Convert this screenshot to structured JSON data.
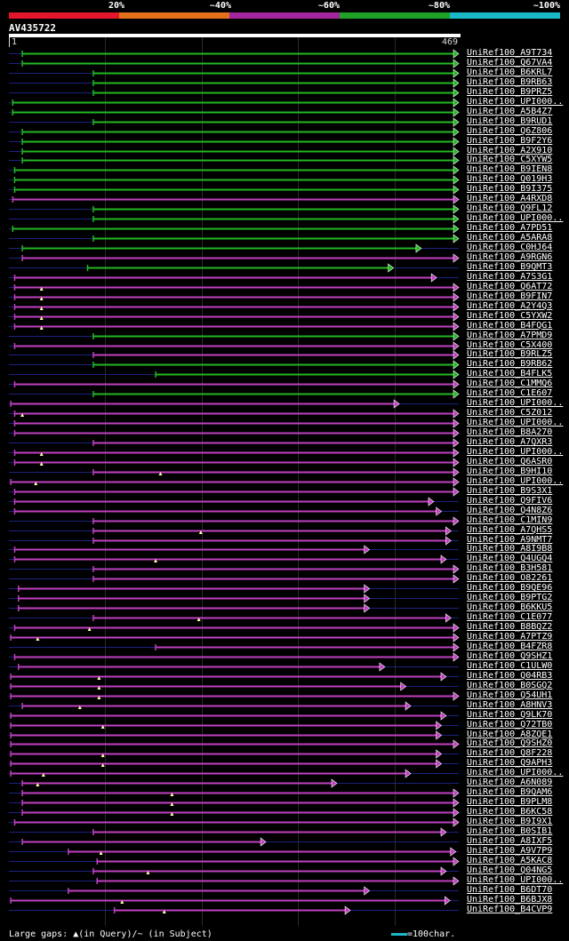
{
  "scale": {
    "labels": [
      "20%",
      "~40%",
      "~60%",
      "~80%",
      "~100%"
    ],
    "colors": [
      "#e4162b",
      "#e5701b",
      "#a3269e",
      "#1fa127",
      "#19b8c8"
    ]
  },
  "query": {
    "name": "AV435722",
    "start": "1",
    "end": "469",
    "length": 469
  },
  "legend": {
    "text": "Large gaps: ▲(in Query)/~ (in Subject)",
    "scale_key": "=100char."
  },
  "colors": {
    "green": "#22b822",
    "purple": "#c040c0",
    "thin": "#1a237e",
    "gap": "#ffffaa"
  },
  "hits": [
    {
      "name": "UniRef100_A9T734",
      "color": "green",
      "start": 14,
      "end": 469,
      "gap": null
    },
    {
      "name": "UniRef100_Q67VA4",
      "color": "green",
      "start": 14,
      "end": 469,
      "gap": null
    },
    {
      "name": "UniRef100_B6KRL7",
      "color": "green",
      "start": 88,
      "end": 469,
      "gap": null
    },
    {
      "name": "UniRef100_B9RB63",
      "color": "green",
      "start": 88,
      "end": 469,
      "gap": null
    },
    {
      "name": "UniRef100_B9PRZ5",
      "color": "green",
      "start": 88,
      "end": 469,
      "gap": null
    },
    {
      "name": "UniRef100_UPI000..",
      "color": "green",
      "start": 4,
      "end": 469,
      "gap": null
    },
    {
      "name": "UniRef100_A5B4Z7",
      "color": "green",
      "start": 4,
      "end": 469,
      "gap": null
    },
    {
      "name": "UniRef100_B9RUD1",
      "color": "green",
      "start": 88,
      "end": 469,
      "gap": null
    },
    {
      "name": "UniRef100_Q6Z806",
      "color": "green",
      "start": 14,
      "end": 469,
      "gap": null
    },
    {
      "name": "UniRef100_B9F2Y6",
      "color": "green",
      "start": 14,
      "end": 469,
      "gap": null
    },
    {
      "name": "UniRef100_A2X910",
      "color": "green",
      "start": 14,
      "end": 469,
      "gap": null
    },
    {
      "name": "UniRef100_C5XYW5",
      "color": "green",
      "start": 14,
      "end": 469,
      "gap": null
    },
    {
      "name": "UniRef100_B9IEN8",
      "color": "green",
      "start": 6,
      "end": 469,
      "gap": null
    },
    {
      "name": "UniRef100_Q019H3",
      "color": "green",
      "start": 6,
      "end": 469,
      "gap": null
    },
    {
      "name": "UniRef100_B9I375",
      "color": "green",
      "start": 6,
      "end": 469,
      "gap": null
    },
    {
      "name": "UniRef100_A4RXD8",
      "color": "purple",
      "start": 4,
      "end": 469,
      "gap": null
    },
    {
      "name": "UniRef100_Q9FL12",
      "color": "green",
      "start": 88,
      "end": 469,
      "gap": null
    },
    {
      "name": "UniRef100_UPI000..",
      "color": "green",
      "start": 88,
      "end": 469,
      "gap": null
    },
    {
      "name": "UniRef100_A7PD51",
      "color": "green",
      "start": 4,
      "end": 469,
      "gap": null
    },
    {
      "name": "UniRef100_A5ARA8",
      "color": "green",
      "start": 88,
      "end": 469,
      "gap": null
    },
    {
      "name": "UniRef100_C0HJ64",
      "color": "green",
      "start": 14,
      "end": 430,
      "gap": null
    },
    {
      "name": "UniRef100_A9RGN6",
      "color": "purple",
      "start": 14,
      "end": 469,
      "gap": null
    },
    {
      "name": "UniRef100_B9QMT3",
      "color": "green",
      "start": 82,
      "end": 401,
      "gap": null
    },
    {
      "name": "UniRef100_A7S3G1",
      "color": "purple",
      "start": 6,
      "end": 446,
      "gap": null
    },
    {
      "name": "UniRef100_Q6AT72",
      "color": "purple",
      "start": 6,
      "end": 469,
      "gap": 34
    },
    {
      "name": "UniRef100_B9FIN7",
      "color": "purple",
      "start": 6,
      "end": 469,
      "gap": 34
    },
    {
      "name": "UniRef100_A2Y4Q3",
      "color": "purple",
      "start": 6,
      "end": 469,
      "gap": 34
    },
    {
      "name": "UniRef100_C5YXW2",
      "color": "purple",
      "start": 6,
      "end": 469,
      "gap": 34
    },
    {
      "name": "UniRef100_B4FQG1",
      "color": "purple",
      "start": 6,
      "end": 469,
      "gap": 34
    },
    {
      "name": "UniRef100_A7PMD9",
      "color": "green",
      "start": 88,
      "end": 469,
      "gap": null
    },
    {
      "name": "UniRef100_C5X400",
      "color": "purple",
      "start": 6,
      "end": 469,
      "gap": null
    },
    {
      "name": "UniRef100_B9RLZ5",
      "color": "purple",
      "start": 88,
      "end": 469,
      "gap": null
    },
    {
      "name": "UniRef100_B9RB62",
      "color": "green",
      "start": 88,
      "end": 469,
      "gap": null
    },
    {
      "name": "UniRef100_B4FLK5",
      "color": "green",
      "start": 153,
      "end": 469,
      "gap": null
    },
    {
      "name": "UniRef100_C1MMQ6",
      "color": "purple",
      "start": 6,
      "end": 469,
      "gap": null
    },
    {
      "name": "UniRef100_C1E607",
      "color": "green",
      "start": 88,
      "end": 469,
      "gap": null
    },
    {
      "name": "UniRef100_UPI000..",
      "color": "purple",
      "start": 2,
      "end": 407,
      "gap": null
    },
    {
      "name": "UniRef100_C5Z012",
      "color": "purple",
      "start": 6,
      "end": 469,
      "gap": 14
    },
    {
      "name": "UniRef100_UPI000..",
      "color": "purple",
      "start": 6,
      "end": 469,
      "gap": null
    },
    {
      "name": "UniRef100_B8A270",
      "color": "purple",
      "start": 6,
      "end": 469,
      "gap": null
    },
    {
      "name": "UniRef100_A7QXR3",
      "color": "purple",
      "start": 88,
      "end": 469,
      "gap": null
    },
    {
      "name": "UniRef100_UPI000..",
      "color": "purple",
      "start": 6,
      "end": 469,
      "gap": 34
    },
    {
      "name": "UniRef100_Q6ASR0",
      "color": "purple",
      "start": 6,
      "end": 469,
      "gap": 34
    },
    {
      "name": "UniRef100_B9HI10",
      "color": "purple",
      "start": 88,
      "end": 469,
      "gap": 158
    },
    {
      "name": "UniRef100_UPI000..",
      "color": "purple",
      "start": 2,
      "end": 469,
      "gap": 28
    },
    {
      "name": "UniRef100_B9S3X1",
      "color": "purple",
      "start": 6,
      "end": 469,
      "gap": null
    },
    {
      "name": "UniRef100_Q9FIV6",
      "color": "purple",
      "start": 6,
      "end": 443,
      "gap": null
    },
    {
      "name": "UniRef100_Q4N8Z6",
      "color": "purple",
      "start": 6,
      "end": 451,
      "gap": null
    },
    {
      "name": "UniRef100_C1MIN9",
      "color": "purple",
      "start": 88,
      "end": 469,
      "gap": null
    },
    {
      "name": "UniRef100_A7QHS5",
      "color": "purple",
      "start": 88,
      "end": 461,
      "gap": 200
    },
    {
      "name": "UniRef100_A9NMT7",
      "color": "purple",
      "start": 88,
      "end": 461,
      "gap": null
    },
    {
      "name": "UniRef100_A8I9B8",
      "color": "purple",
      "start": 6,
      "end": 376,
      "gap": null
    },
    {
      "name": "UniRef100_Q4UGQ4",
      "color": "purple",
      "start": 6,
      "end": 456,
      "gap": 153
    },
    {
      "name": "UniRef100_B3H581",
      "color": "purple",
      "start": 88,
      "end": 469,
      "gap": null
    },
    {
      "name": "UniRef100_O82261",
      "color": "purple",
      "start": 88,
      "end": 469,
      "gap": null
    },
    {
      "name": "UniRef100_B9QE96",
      "color": "purple",
      "start": 10,
      "end": 376,
      "gap": null
    },
    {
      "name": "UniRef100_B9PTG2",
      "color": "purple",
      "start": 10,
      "end": 376,
      "gap": null
    },
    {
      "name": "UniRef100_B6KKU5",
      "color": "purple",
      "start": 10,
      "end": 376,
      "gap": null
    },
    {
      "name": "UniRef100_C1E077",
      "color": "purple",
      "start": 88,
      "end": 461,
      "gap": 198
    },
    {
      "name": "UniRef100_B8BQZ2",
      "color": "purple",
      "start": 6,
      "end": 469,
      "gap": 84
    },
    {
      "name": "UniRef100_A7PTZ9",
      "color": "purple",
      "start": 2,
      "end": 469,
      "gap": 30
    },
    {
      "name": "UniRef100_B4FZR8",
      "color": "purple",
      "start": 153,
      "end": 469,
      "gap": null
    },
    {
      "name": "UniRef100_Q9SHZ1",
      "color": "purple",
      "start": 6,
      "end": 469,
      "gap": null
    },
    {
      "name": "UniRef100_C1ULW0",
      "color": "purple",
      "start": 10,
      "end": 392,
      "gap": null
    },
    {
      "name": "UniRef100_Q04RB3",
      "color": "purple",
      "start": 2,
      "end": 456,
      "gap": 94
    },
    {
      "name": "UniRef100_B0SGQ2",
      "color": "purple",
      "start": 2,
      "end": 414,
      "gap": 94
    },
    {
      "name": "UniRef100_Q54UH1",
      "color": "purple",
      "start": 2,
      "end": 469,
      "gap": 94
    },
    {
      "name": "UniRef100_A8HNV3",
      "color": "purple",
      "start": 14,
      "end": 419,
      "gap": 74
    },
    {
      "name": "UniRef100_Q9LK70",
      "color": "purple",
      "start": 2,
      "end": 456,
      "gap": null
    },
    {
      "name": "UniRef100_Q72TB0",
      "color": "purple",
      "start": 2,
      "end": 451,
      "gap": 98
    },
    {
      "name": "UniRef100_A8ZQE1",
      "color": "purple",
      "start": 2,
      "end": 451,
      "gap": null
    },
    {
      "name": "UniRef100_Q9SHZ0",
      "color": "purple",
      "start": 2,
      "end": 469,
      "gap": null
    },
    {
      "name": "UniRef100_Q8F228",
      "color": "purple",
      "start": 2,
      "end": 451,
      "gap": 98
    },
    {
      "name": "UniRef100_Q9APH3",
      "color": "purple",
      "start": 2,
      "end": 451,
      "gap": 98
    },
    {
      "name": "UniRef100_UPI000..",
      "color": "purple",
      "start": 2,
      "end": 419,
      "gap": 36
    },
    {
      "name": "UniRef100_A6N089",
      "color": "purple",
      "start": 14,
      "end": 342,
      "gap": 30
    },
    {
      "name": "UniRef100_B9QAM6",
      "color": "purple",
      "start": 14,
      "end": 469,
      "gap": 170
    },
    {
      "name": "UniRef100_B9PLM8",
      "color": "purple",
      "start": 14,
      "end": 469,
      "gap": 170
    },
    {
      "name": "UniRef100_B6KC58",
      "color": "purple",
      "start": 14,
      "end": 469,
      "gap": 170
    },
    {
      "name": "UniRef100_B9I9X1",
      "color": "purple",
      "start": 6,
      "end": 469,
      "gap": null
    },
    {
      "name": "UniRef100_B0SIB1",
      "color": "purple",
      "start": 88,
      "end": 456,
      "gap": null
    },
    {
      "name": "UniRef100_A8IXF5",
      "color": "purple",
      "start": 14,
      "end": 268,
      "gap": null
    },
    {
      "name": "UniRef100_A9V7P9",
      "color": "purple",
      "start": 62,
      "end": 466,
      "gap": 96
    },
    {
      "name": "UniRef100_A5KAC8",
      "color": "purple",
      "start": 92,
      "end": 469,
      "gap": null
    },
    {
      "name": "UniRef100_Q04NG5",
      "color": "purple",
      "start": 88,
      "end": 456,
      "gap": 145
    },
    {
      "name": "UniRef100_UPI000..",
      "color": "purple",
      "start": 92,
      "end": 469,
      "gap": null
    },
    {
      "name": "UniRef100_B6DT70",
      "color": "purple",
      "start": 62,
      "end": 376,
      "gap": null
    },
    {
      "name": "UniRef100_B6BJX8",
      "color": "purple",
      "start": 2,
      "end": 460,
      "gap": 118
    },
    {
      "name": "UniRef100_B4CVP9",
      "color": "purple",
      "start": 110,
      "end": 356,
      "gap": 162
    }
  ]
}
